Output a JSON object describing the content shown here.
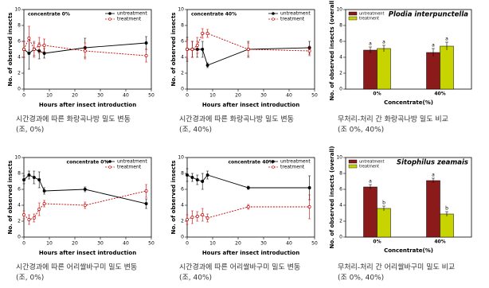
{
  "chart_data": [
    {
      "type": "line",
      "title": "concentrate 0%",
      "xlabel": "Hours after insect introduction",
      "ylabel": "No. of observed insects",
      "x": [
        0,
        2,
        4,
        6,
        8,
        24,
        48
      ],
      "xlim": [
        0,
        50
      ],
      "xticks": [
        0,
        10,
        20,
        30,
        40,
        50
      ],
      "ylim": [
        0,
        10
      ],
      "yticks": [
        0,
        2,
        4,
        6,
        8,
        10
      ],
      "legend": "upper right",
      "series": [
        {
          "name": "untreatment",
          "color": "#000000",
          "linestyle": "solid",
          "values": [
            5,
            4.5,
            5,
            4.8,
            4.5,
            5.2,
            5.8
          ],
          "errors": [
            1,
            2,
            0.8,
            1,
            0.6,
            1.2,
            0.8
          ]
        },
        {
          "name": "treatment",
          "color": "#cc0000",
          "linestyle": "dashed",
          "values": [
            5,
            6.4,
            5,
            5.5,
            5.5,
            4.8,
            4.2
          ],
          "errors": [
            1,
            1.5,
            1,
            1,
            0.8,
            1,
            0.8
          ]
        }
      ],
      "caption": [
        "시간경과에 따른 화랑곡나방 밀도 변동",
        "(조, 0%)"
      ]
    },
    {
      "type": "line",
      "title": "concentrate 40%",
      "xlabel": "Hours after insect introduction",
      "ylabel": "No. of observed insects",
      "x": [
        0,
        2,
        4,
        6,
        8,
        24,
        48
      ],
      "xlim": [
        0,
        50
      ],
      "xticks": [
        0,
        10,
        20,
        30,
        40,
        50
      ],
      "ylim": [
        0,
        10
      ],
      "yticks": [
        0,
        2,
        4,
        6,
        8,
        10
      ],
      "legend": "upper right",
      "series": [
        {
          "name": "untreatment",
          "color": "#000000",
          "linestyle": "solid",
          "values": [
            5,
            5,
            5,
            5,
            3,
            5,
            5.2
          ],
          "errors": [
            1.5,
            1,
            1,
            1,
            0.3,
            1,
            0.8
          ]
        },
        {
          "name": "treatment",
          "color": "#cc0000",
          "linestyle": "dashed",
          "values": [
            5,
            5,
            5.5,
            7,
            7,
            5,
            4.8
          ],
          "errors": [
            1.2,
            1,
            1,
            0.6,
            0.5,
            0.8,
            0.6
          ]
        }
      ],
      "caption": [
        "시간경과에 따른 화랑곡나방 밀도 변동",
        "(조, 40%)"
      ]
    },
    {
      "type": "bar",
      "title": "Plodia interpunctella",
      "xlabel": "Concentrate(%)",
      "ylabel": "No. of observed insects (overall)",
      "categories": [
        "0%",
        "40%"
      ],
      "ylim": [
        0,
        10
      ],
      "yticks": [
        0,
        2,
        4,
        6,
        8,
        10
      ],
      "legend": "upper left",
      "series": [
        {
          "name": "untreatment",
          "color": "#8b1a1a",
          "values": [
            4.9,
            4.6
          ],
          "errors": [
            0.4,
            0.5
          ],
          "letters": [
            "a",
            "a"
          ]
        },
        {
          "name": "treatment",
          "color": "#c8d400",
          "values": [
            5.1,
            5.4
          ],
          "errors": [
            0.4,
            0.5
          ],
          "letters": [
            "a",
            "a"
          ]
        }
      ],
      "caption": [
        "무처리-처리 간 화랑곡나방 밀도 비교",
        "(조 0%, 40%)"
      ]
    },
    {
      "type": "line",
      "title": "concentrate 0%",
      "xlabel": "Hours after insect introduction",
      "ylabel": "No. of observed insects",
      "x": [
        0,
        2,
        4,
        6,
        8,
        24,
        48
      ],
      "xlim": [
        0,
        50
      ],
      "xticks": [
        0,
        10,
        20,
        30,
        40,
        50
      ],
      "ylim": [
        0,
        10
      ],
      "yticks": [
        0,
        2,
        4,
        6,
        8,
        10
      ],
      "legend": "upper right",
      "series": [
        {
          "name": "untreatment",
          "color": "#000000",
          "linestyle": "solid",
          "values": [
            7.2,
            7.8,
            7.5,
            7.2,
            5.8,
            6,
            4.2
          ],
          "errors": [
            0.5,
            0.5,
            0.8,
            1,
            0.4,
            0.3,
            0.6
          ]
        },
        {
          "name": "treatment",
          "color": "#cc0000",
          "linestyle": "dashed",
          "values": [
            2.8,
            2.2,
            2.4,
            3.5,
            4.2,
            4,
            5.8
          ],
          "errors": [
            0.5,
            0.6,
            0.5,
            0.8,
            0.4,
            0.4,
            0.8
          ]
        }
      ],
      "caption": [
        "시간경과에 따른 어리쌀바구미 밀도 변동",
        "(조, 0%)"
      ]
    },
    {
      "type": "line",
      "title": "concentrate 40%",
      "xlabel": "Hours after insect introduction",
      "ylabel": "No. of observed insects",
      "x": [
        0,
        2,
        4,
        6,
        8,
        24,
        48
      ],
      "xlim": [
        0,
        50
      ],
      "xticks": [
        0,
        10,
        20,
        30,
        40,
        50
      ],
      "ylim": [
        0,
        10
      ],
      "yticks": [
        0,
        2,
        4,
        6,
        8,
        10
      ],
      "legend": "upper right",
      "series": [
        {
          "name": "untreatment",
          "color": "#000000",
          "linestyle": "solid",
          "values": [
            7.8,
            7.5,
            7.2,
            7,
            7.8,
            6.2,
            6.2
          ],
          "errors": [
            0.8,
            0.5,
            0.6,
            1,
            0.5,
            0.2,
            1.5
          ]
        },
        {
          "name": "treatment",
          "color": "#cc0000",
          "linestyle": "dashed",
          "values": [
            2.2,
            2.5,
            2.6,
            2.8,
            2.4,
            3.8,
            3.8
          ],
          "errors": [
            0.6,
            0.8,
            0.6,
            0.8,
            0.5,
            0.3,
            1.5
          ]
        }
      ],
      "caption": [
        "시간경과에 따른 어리쌀바구미 밀도 변동",
        "(조, 40%)"
      ]
    },
    {
      "type": "bar",
      "title": "Sitophilus zeamais",
      "xlabel": "Concentrate(%)",
      "ylabel": "No. of observed insects (overall)",
      "categories": [
        "0%",
        "40%"
      ],
      "ylim": [
        0,
        10
      ],
      "yticks": [
        0,
        2,
        4,
        6,
        8,
        10
      ],
      "legend": "upper left",
      "series": [
        {
          "name": "untreatment",
          "color": "#8b1a1a",
          "values": [
            6.3,
            7.1
          ],
          "errors": [
            0.3,
            0.3
          ],
          "letters": [
            "a",
            "a"
          ]
        },
        {
          "name": "treatment",
          "color": "#c8d400",
          "values": [
            3.6,
            2.9
          ],
          "errors": [
            0.3,
            0.3
          ],
          "letters": [
            "b",
            "b"
          ]
        }
      ],
      "caption": [
        "무처리-처리 간 어리쌀바구미 밀도 비교",
        "(조 0%, 40%)"
      ]
    }
  ]
}
